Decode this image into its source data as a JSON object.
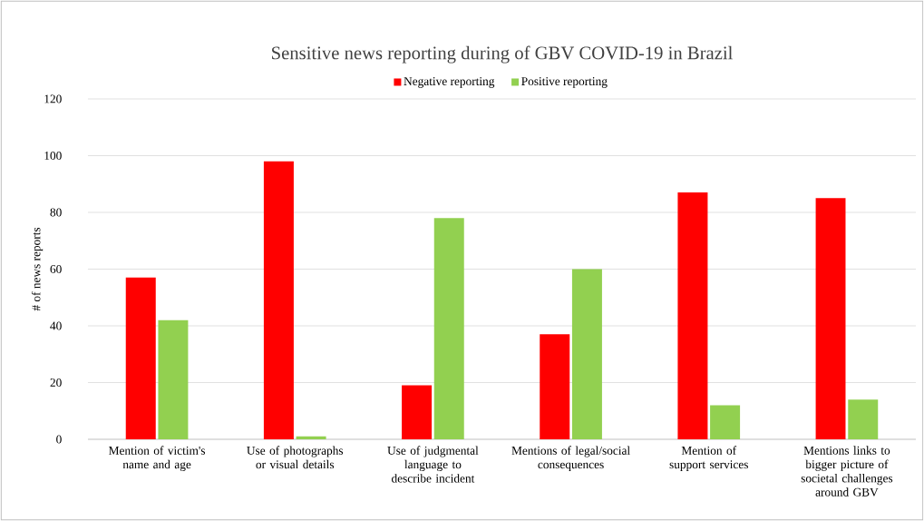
{
  "chart_data": {
    "type": "bar",
    "title": "Sensitive news reporting  during of GBV COVID-19 in Brazil",
    "ylabel": "# of news reports",
    "categories": [
      "Mention of victim's name and age",
      "Use of photographs or visual details",
      "Use of judgmental language to describe incident",
      "Mentions of legal/social consequences",
      "Mention of support services",
      "Mentions links to bigger picture of societal challenges around GBV"
    ],
    "series": [
      {
        "name": "Negative reporting",
        "color": "#ff0000",
        "values": [
          57,
          98,
          19,
          37,
          87,
          85
        ]
      },
      {
        "name": "Positive reporting",
        "color": "#92d050",
        "values": [
          42,
          1,
          78,
          60,
          12,
          14
        ]
      }
    ],
    "ylim": [
      0,
      120
    ],
    "yticks": [
      0,
      20,
      40,
      60,
      80,
      100,
      120
    ],
    "grid": "y",
    "legend": "top"
  }
}
